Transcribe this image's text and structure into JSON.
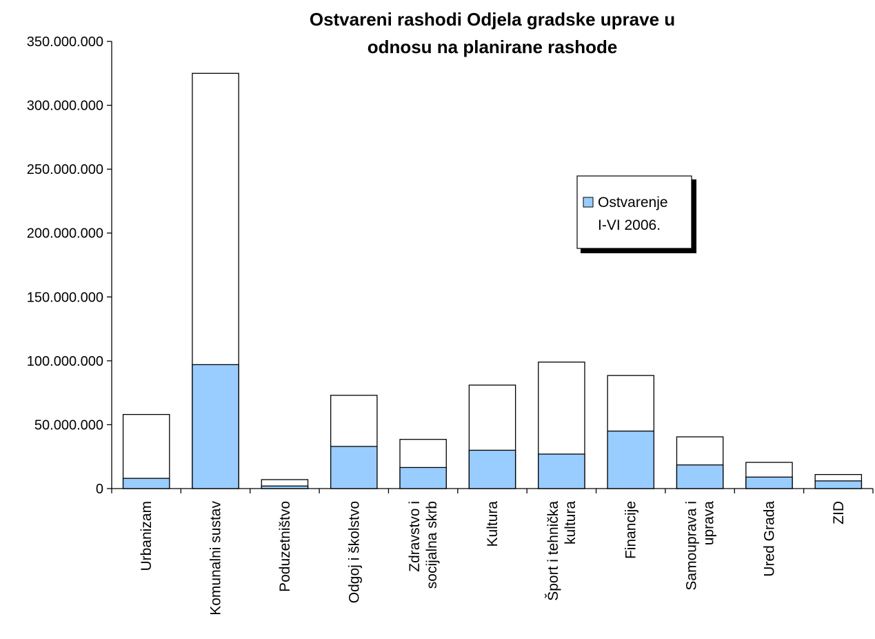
{
  "chart_data": {
    "type": "bar",
    "title_lines": [
      "Ostvareni rashodi Odjela gradske uprave u",
      "odnosu na planirane rashode"
    ],
    "categories": [
      [
        "Urbanizam"
      ],
      [
        "Komunalni sustav"
      ],
      [
        "Poduzetništvo"
      ],
      [
        "Odgoj i školstvo"
      ],
      [
        "Zdravstvo i",
        "socijalna skrb"
      ],
      [
        "Kultura"
      ],
      [
        "Šport i tehnička",
        "kultura"
      ],
      [
        "Financije"
      ],
      [
        "Samouprava i",
        "uprava"
      ],
      [
        "Ured Grada"
      ],
      [
        "ZID"
      ]
    ],
    "series": [
      {
        "name": "Ostvarenje I-VI 2006.",
        "legend_lines": [
          "Ostvarenje",
          "I-VI 2006."
        ],
        "color": "#99ccff",
        "values": [
          8000000,
          97000000,
          2000000,
          33000000,
          16500000,
          30000000,
          27000000,
          45000000,
          18500000,
          9000000,
          6000000
        ]
      },
      {
        "name": "",
        "color": "#ffffff",
        "values": [
          58000000,
          325000000,
          7000000,
          73000000,
          38500000,
          81000000,
          99000000,
          88500000,
          40500000,
          20500000,
          11000000
        ]
      }
    ],
    "ylim": [
      0,
      350000000
    ],
    "yticks": [
      0,
      50000000,
      100000000,
      150000000,
      200000000,
      250000000,
      300000000,
      350000000
    ],
    "ytick_labels": [
      "0",
      "50.000.000",
      "100.000.000",
      "150.000.000",
      "200.000.000",
      "250.000.000",
      "300.000.000",
      "350.000.000"
    ],
    "legend_position": "right",
    "grid": false,
    "xlabel": "",
    "ylabel": ""
  }
}
